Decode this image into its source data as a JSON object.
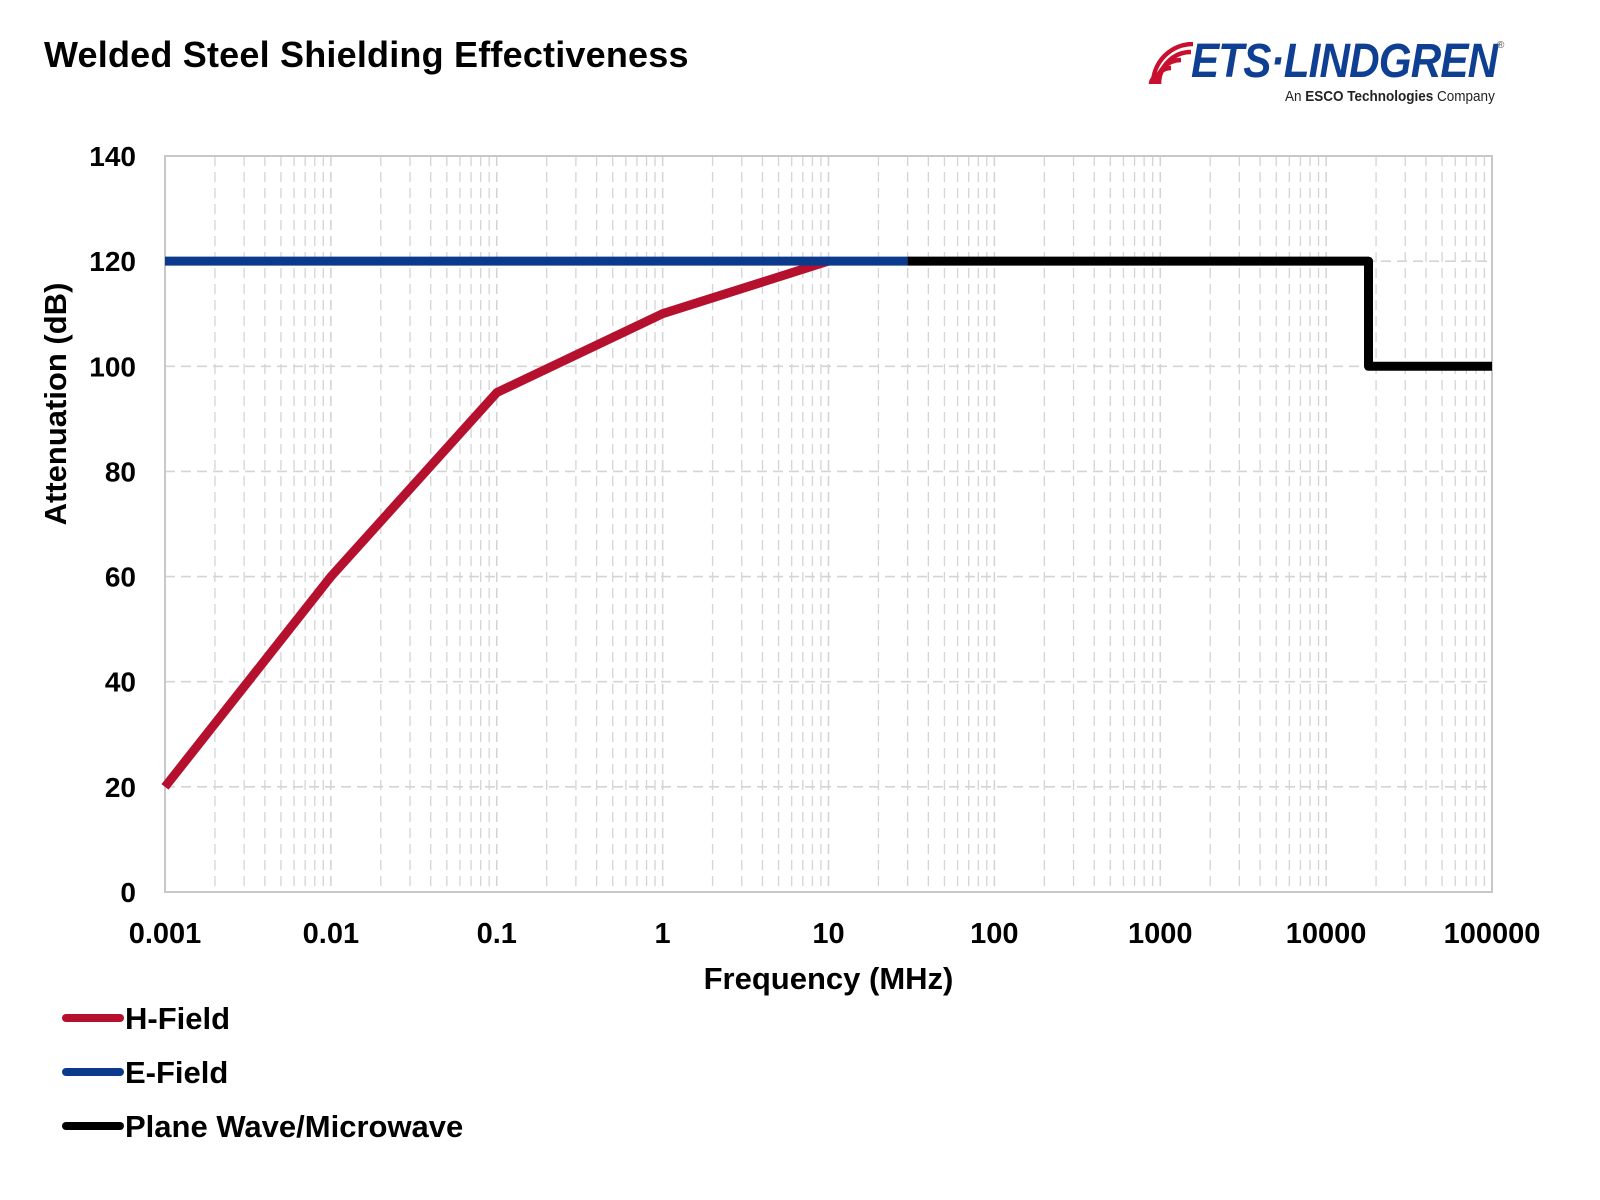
{
  "header": {
    "title": "Welded Steel Shielding Effectiveness"
  },
  "logo": {
    "name": "ETS·LINDGREN",
    "registered": "®",
    "tagline_prefix": "An ",
    "tagline_bold": "ESCO Technologies",
    "tagline_suffix": " Company",
    "colors": {
      "waves": "#c8102e",
      "text": "#0f3f93"
    }
  },
  "chart_data": {
    "type": "line",
    "title": "Welded Steel Shielding Effectiveness",
    "xlabel": "Frequency (MHz)",
    "ylabel": "Attenuation (dB)",
    "xscale": "log",
    "xlim": [
      0.001,
      100000
    ],
    "ylim": [
      0,
      140
    ],
    "grid": true,
    "x_ticks": [
      0.001,
      0.01,
      0.1,
      1,
      10,
      100,
      1000,
      10000,
      100000
    ],
    "x_tick_labels": [
      "0.001",
      "0.01",
      "0.1",
      "1",
      "10",
      "100",
      "1000",
      "10000",
      "100000"
    ],
    "y_ticks": [
      0,
      20,
      40,
      60,
      80,
      100,
      120,
      140
    ],
    "y_tick_labels": [
      "0",
      "20",
      "40",
      "60",
      "80",
      "100",
      "120",
      "140"
    ],
    "legend_position": "bottom-left",
    "series": [
      {
        "name": "H-Field",
        "color": "#b5102e",
        "points": [
          [
            0.001,
            20
          ],
          [
            0.01,
            60
          ],
          [
            0.1,
            95
          ],
          [
            1,
            110
          ],
          [
            10,
            120
          ]
        ]
      },
      {
        "name": "E-Field",
        "color": "#0b3a8c",
        "points": [
          [
            0.001,
            120
          ],
          [
            30,
            120
          ]
        ]
      },
      {
        "name": "Plane Wave/Microwave",
        "color": "#000000",
        "points": [
          [
            30,
            120
          ],
          [
            18000,
            120
          ],
          [
            18000,
            100
          ],
          [
            100000,
            100
          ]
        ]
      }
    ]
  }
}
